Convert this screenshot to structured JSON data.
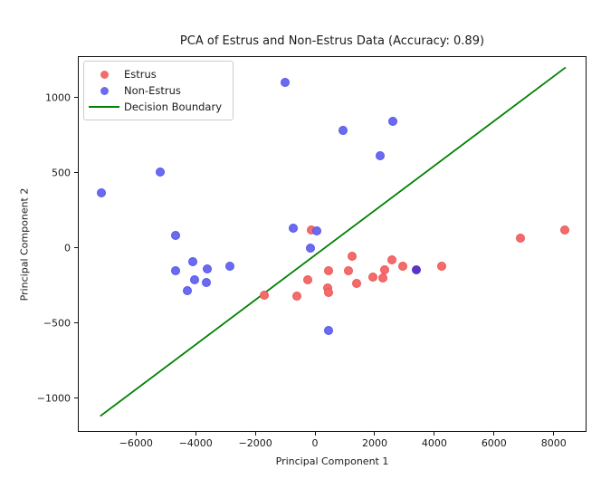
{
  "figure": {
    "background": "#ffffff"
  },
  "chart_data": {
    "type": "scatter",
    "title": "PCA of Estrus and Non-Estrus Data (Accuracy: 0.89)",
    "xlabel": "Principal Component 1",
    "ylabel": "Principal Component 2",
    "xlim": [
      -7950,
      9100
    ],
    "ylim": [
      -1225,
      1275
    ],
    "x_ticks": [
      -6000,
      -4000,
      -2000,
      0,
      2000,
      4000,
      6000,
      8000
    ],
    "y_ticks": [
      -1000,
      -500,
      0,
      500,
      1000
    ],
    "grid": false,
    "accuracy_shown_in_title": 0.89,
    "legend": {
      "position": "upper left",
      "items": [
        {
          "label": "Estrus",
          "marker": "dot",
          "color": "#f26c6c"
        },
        {
          "label": "Non-Estrus",
          "marker": "dot",
          "color": "#6b6bf0"
        },
        {
          "label": "Decision Boundary",
          "marker": "line",
          "color": "#008000"
        }
      ]
    },
    "series": [
      {
        "name": "Estrus",
        "marker_color": "#f26c6c",
        "marker_edge_color": "#ee5555",
        "points": [
          [
            -1700,
            -315
          ],
          [
            -600,
            -320
          ],
          [
            -240,
            -210
          ],
          [
            -120,
            120
          ],
          [
            425,
            -270
          ],
          [
            455,
            -295
          ],
          [
            455,
            -155
          ],
          [
            1120,
            -150
          ],
          [
            1240,
            -55
          ],
          [
            1390,
            -240
          ],
          [
            1940,
            -195
          ],
          [
            2270,
            -200
          ],
          [
            2330,
            -145
          ],
          [
            2575,
            -80
          ],
          [
            2940,
            -120
          ],
          [
            4240,
            -125
          ],
          [
            6880,
            65
          ],
          [
            8360,
            120
          ]
        ]
      },
      {
        "name": "Non-Estrus",
        "marker_color": "#6b6bf0",
        "marker_edge_color": "#5555ee",
        "points": [
          [
            -7150,
            365
          ],
          [
            -5200,
            505
          ],
          [
            -4670,
            80
          ],
          [
            -4670,
            -155
          ],
          [
            -4270,
            -285
          ],
          [
            -4090,
            -90
          ],
          [
            -4030,
            -215
          ],
          [
            -3640,
            -230
          ],
          [
            -3600,
            -140
          ],
          [
            -2850,
            -120
          ],
          [
            -1000,
            1100
          ],
          [
            -730,
            130
          ],
          [
            -150,
            0
          ],
          [
            60,
            115
          ],
          [
            455,
            -550
          ],
          [
            950,
            780
          ],
          [
            2180,
            610
          ],
          [
            2600,
            840
          ]
        ]
      }
    ],
    "overlap_points": [
      {
        "x": 3390,
        "y": -145,
        "color": "#5c33c4",
        "note": "blue over red blend"
      }
    ],
    "decision_boundary": {
      "label": "Decision Boundary",
      "color": "#008000",
      "points": [
        [
          -7200,
          -1120
        ],
        [
          8400,
          1200
        ]
      ]
    }
  }
}
